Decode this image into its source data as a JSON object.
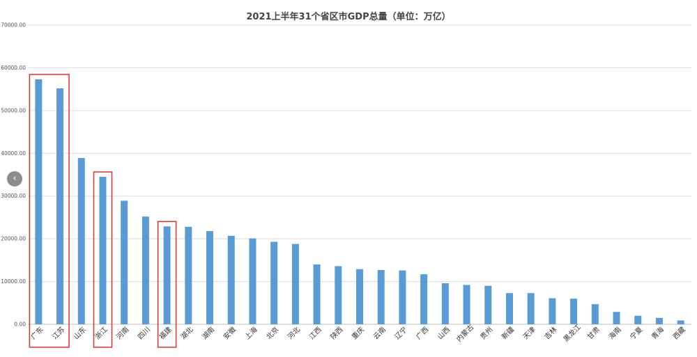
{
  "chart_data": {
    "type": "bar",
    "title": "2021上半年31个省区市GDP总量（单位：万亿）",
    "categories": [
      "广东",
      "江苏",
      "山东",
      "浙江",
      "河南",
      "四川",
      "福建",
      "湖北",
      "湖南",
      "安徽",
      "上海",
      "北京",
      "河北",
      "江西",
      "陕西",
      "重庆",
      "云南",
      "辽宁",
      "广西",
      "山西",
      "内蒙古",
      "贵州",
      "新疆",
      "天津",
      "吉林",
      "黑龙江",
      "甘肃",
      "海南",
      "宁夏",
      "青海",
      "西藏"
    ],
    "values": [
      57300,
      55200,
      38900,
      34500,
      28900,
      25200,
      22900,
      22800,
      21800,
      20700,
      20100,
      19300,
      18800,
      14000,
      13600,
      12900,
      12700,
      12600,
      11700,
      9600,
      9200,
      9000,
      7300,
      7300,
      6100,
      6000,
      4700,
      2900,
      2000,
      1500,
      900
    ],
    "yticks": [
      "0.00",
      "10000.00",
      "20000.00",
      "30000.00",
      "40000.00",
      "50000.00",
      "60000.00",
      "70000.00"
    ],
    "ylim": [
      0,
      70000
    ],
    "bar_color": "#5b9bd5",
    "highlight_color": "#e0302a",
    "highlight_groups": [
      [
        "广东",
        "江苏"
      ],
      [
        "浙江"
      ],
      [
        "福建"
      ]
    ],
    "grid": true
  },
  "nav": {
    "prev_glyph": "‹",
    "prev_icon": "chevron-left-icon"
  }
}
